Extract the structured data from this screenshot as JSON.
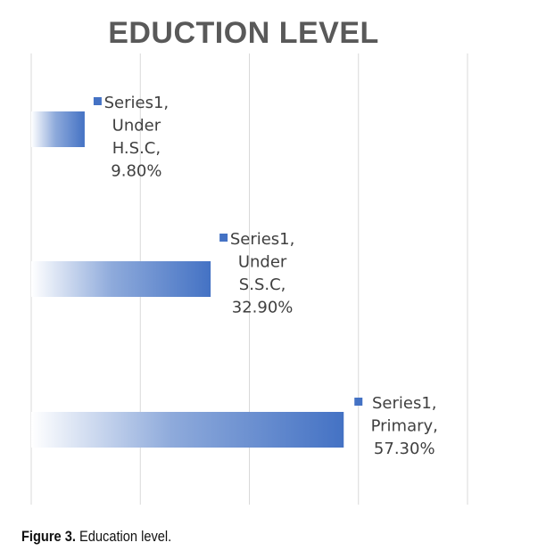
{
  "chart_data": {
    "type": "bar",
    "orientation": "horizontal",
    "title": "EDUCTION LEVEL",
    "categories": [
      "Under H.S.C",
      "Under S.S.C",
      "Primary"
    ],
    "series": [
      {
        "name": "Series1",
        "values": [
          9.8,
          32.9,
          57.3
        ]
      }
    ],
    "data_labels": [
      [
        "Series1,",
        "Under",
        "H.S.C,",
        "9.80%"
      ],
      [
        "Series1,",
        "Under",
        "S.S.C,",
        "32.90%"
      ],
      [
        "Series1,",
        "Primary,",
        "57.30%"
      ]
    ],
    "xlim": [
      0,
      80
    ],
    "grid": true,
    "legend": "none",
    "bar_color": "#4472c4"
  },
  "caption": {
    "label": "Figure 3.",
    "text": "Education level."
  }
}
